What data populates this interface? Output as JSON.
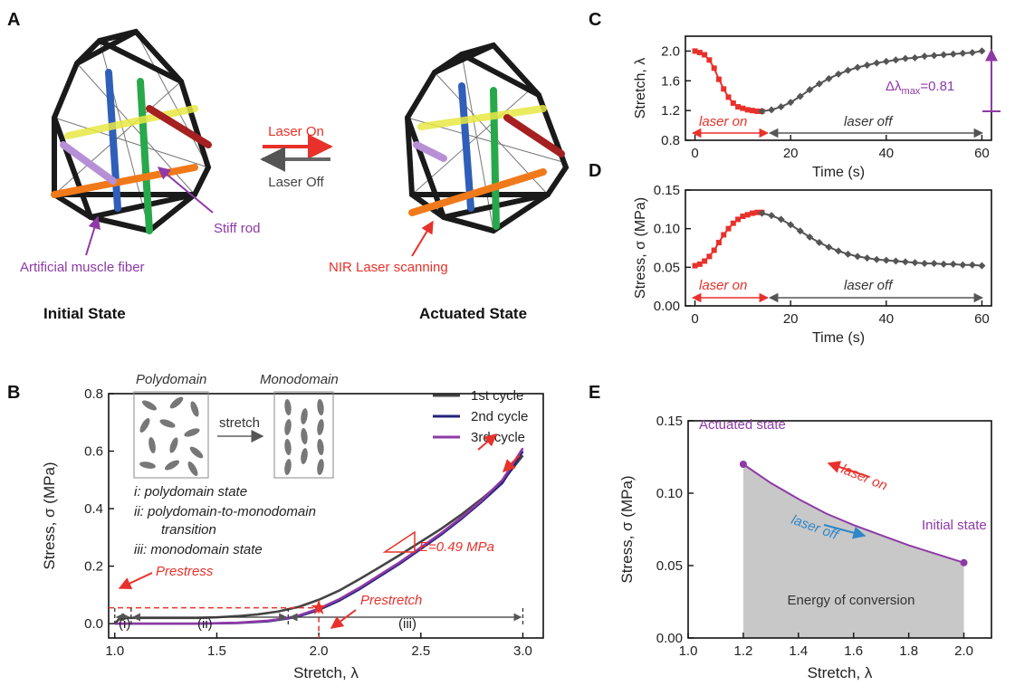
{
  "panel_labels": [
    "A",
    "B",
    "C",
    "D",
    "E"
  ],
  "panelA": {
    "laser_on": "Laser On",
    "laser_off": "Laser Off",
    "stiff_rod": "Stiff rod",
    "muscle_fiber": "Artificial muscle fiber",
    "nir_scanning": "NIR Laser scanning",
    "initial_state": "Initial State",
    "actuated_state": "Actuated State"
  },
  "panelB": {
    "polydomain": "Polydomain",
    "monodomain": "Monodomain",
    "stretch_word": "stretch",
    "regime_i": "i: polydomain state",
    "regime_ii_a": "ii: polydomain-to-monodomain",
    "regime_ii_b": "transition",
    "regime_iii": "iii: monodomain state",
    "prestress": "Prestress",
    "prestretch": "Prestretch",
    "modulus": "E=0.49 MPa",
    "seg_i": "(i)",
    "seg_ii": "(ii)",
    "seg_iii": "(iii)"
  },
  "panelC": {
    "delta_prefix": "Δλ",
    "delta_sub": "max",
    "delta_value": "=0.81",
    "laser_on": "laser on",
    "laser_off": "laser off"
  },
  "panelD": {
    "laser_on": "laser on",
    "laser_off": "laser off"
  },
  "panelE": {
    "actuated": "Actuated state",
    "initial": "Initial state",
    "laser_on": "laser on",
    "laser_off": "laser off",
    "energy": "Energy of conversion"
  },
  "colors": {
    "red": "#e8312b",
    "gray": "#555555",
    "purple": "#8e3aa6",
    "navy": "#23237a",
    "blue": "#2f86c8",
    "fill": "#c8c8c8"
  },
  "chart_data": [
    {
      "id": "B",
      "type": "line",
      "xlabel": "Stretch, λ",
      "ylabel": "Stress, σ (MPa)",
      "xlim": [
        0.97,
        3.1
      ],
      "ylim": [
        -0.05,
        0.8
      ],
      "xticks": [
        "1.0",
        "1.5",
        "2.0",
        "2.5",
        "3.0"
      ],
      "xtick_values": [
        1.0,
        1.5,
        2.0,
        2.5,
        3.0
      ],
      "yticks": [
        "0.0",
        "0.2",
        "0.4",
        "0.6",
        "0.8"
      ],
      "ytick_values": [
        0.0,
        0.2,
        0.4,
        0.6,
        0.8
      ],
      "legend_position": "top-right",
      "series": [
        {
          "name": "1st cycle",
          "color": "#444444",
          "x": [
            1.0,
            1.02,
            1.05,
            1.1,
            1.2,
            1.3,
            1.4,
            1.5,
            1.6,
            1.7,
            1.8,
            1.9,
            2.0,
            2.1,
            2.2,
            2.3,
            2.4,
            2.5,
            2.6,
            2.7,
            2.8,
            2.9,
            3.0
          ],
          "y": [
            0.0,
            0.015,
            0.02,
            0.02,
            0.02,
            0.02,
            0.02,
            0.022,
            0.026,
            0.032,
            0.042,
            0.058,
            0.083,
            0.115,
            0.155,
            0.197,
            0.24,
            0.285,
            0.33,
            0.38,
            0.435,
            0.495,
            0.585
          ]
        },
        {
          "name": "2nd cycle",
          "color": "#23237a",
          "x": [
            1.0,
            1.2,
            1.4,
            1.6,
            1.75,
            1.85,
            1.9,
            2.0,
            2.1,
            2.2,
            2.3,
            2.4,
            2.5,
            2.6,
            2.7,
            2.8,
            2.9,
            3.0
          ],
          "y": [
            0.0,
            0.0,
            0.0,
            0.002,
            0.008,
            0.018,
            0.025,
            0.048,
            0.08,
            0.12,
            0.165,
            0.21,
            0.26,
            0.31,
            0.365,
            0.425,
            0.49,
            0.6
          ]
        },
        {
          "name": "3rd cycle",
          "color": "#8e3aa6",
          "x": [
            1.0,
            1.2,
            1.4,
            1.6,
            1.75,
            1.85,
            1.9,
            2.0,
            2.1,
            2.2,
            2.3,
            2.4,
            2.5,
            2.6,
            2.7,
            2.8,
            2.9,
            3.0
          ],
          "y": [
            0.0,
            0.0,
            0.0,
            0.003,
            0.01,
            0.02,
            0.028,
            0.052,
            0.085,
            0.125,
            0.17,
            0.215,
            0.265,
            0.315,
            0.37,
            0.43,
            0.5,
            0.61
          ]
        }
      ],
      "annotations": {
        "prestress_sigma": 0.055,
        "prestretch_lambda": 2.0,
        "regime_bounds": [
          1.0,
          1.08,
          1.85,
          3.0
        ]
      }
    },
    {
      "id": "C",
      "type": "line",
      "xlabel": "Time (s)",
      "ylabel": "Stretch, λ",
      "xlim": [
        -2,
        62
      ],
      "ylim": [
        0.8,
        2.2
      ],
      "xticks": [
        "0",
        "20",
        "40",
        "60"
      ],
      "xtick_values": [
        0,
        20,
        40,
        60
      ],
      "yticks": [
        "0.8",
        "1.2",
        "1.6",
        "2.0"
      ],
      "ytick_values": [
        0.8,
        1.2,
        1.6,
        2.0
      ],
      "series": [
        {
          "name": "laser on",
          "color": "#e8312b",
          "marker": "square",
          "x": [
            0,
            1,
            2,
            3,
            4,
            5,
            6,
            7,
            8,
            9,
            10,
            11,
            12,
            13,
            14
          ],
          "y": [
            2.0,
            1.98,
            1.95,
            1.88,
            1.77,
            1.62,
            1.49,
            1.38,
            1.3,
            1.25,
            1.23,
            1.21,
            1.2,
            1.19,
            1.19
          ]
        },
        {
          "name": "laser off",
          "color": "#555555",
          "marker": "diamond",
          "x": [
            14,
            16,
            18,
            20,
            22,
            24,
            26,
            28,
            30,
            32,
            34,
            36,
            38,
            40,
            42,
            44,
            46,
            48,
            50,
            52,
            54,
            56,
            58,
            60
          ],
          "y": [
            1.19,
            1.21,
            1.25,
            1.31,
            1.39,
            1.48,
            1.56,
            1.63,
            1.69,
            1.74,
            1.78,
            1.81,
            1.84,
            1.86,
            1.88,
            1.9,
            1.91,
            1.93,
            1.94,
            1.95,
            1.96,
            1.97,
            1.98,
            2.0
          ]
        }
      ]
    },
    {
      "id": "D",
      "type": "line",
      "xlabel": "Time (s)",
      "ylabel": "Stress, σ (MPa)",
      "xlim": [
        -2,
        62
      ],
      "ylim": [
        0.0,
        0.15
      ],
      "xticks": [
        "0",
        "20",
        "40",
        "60"
      ],
      "xtick_values": [
        0,
        20,
        40,
        60
      ],
      "yticks": [
        "0.00",
        "0.05",
        "0.10",
        "0.15"
      ],
      "ytick_values": [
        0.0,
        0.05,
        0.1,
        0.15
      ],
      "series": [
        {
          "name": "laser on",
          "color": "#e8312b",
          "marker": "square",
          "x": [
            0,
            1,
            2,
            3,
            4,
            5,
            6,
            7,
            8,
            9,
            10,
            11,
            12,
            13,
            14
          ],
          "y": [
            0.052,
            0.054,
            0.058,
            0.064,
            0.072,
            0.082,
            0.092,
            0.1,
            0.107,
            0.112,
            0.116,
            0.118,
            0.12,
            0.121,
            0.121
          ]
        },
        {
          "name": "laser off",
          "color": "#555555",
          "marker": "diamond",
          "x": [
            14,
            16,
            18,
            20,
            22,
            24,
            26,
            28,
            30,
            32,
            34,
            36,
            38,
            40,
            42,
            44,
            46,
            48,
            50,
            52,
            54,
            56,
            58,
            60
          ],
          "y": [
            0.12,
            0.117,
            0.112,
            0.105,
            0.097,
            0.089,
            0.082,
            0.076,
            0.071,
            0.067,
            0.064,
            0.062,
            0.06,
            0.059,
            0.058,
            0.057,
            0.056,
            0.055,
            0.055,
            0.054,
            0.054,
            0.053,
            0.053,
            0.052
          ]
        }
      ]
    },
    {
      "id": "E",
      "type": "area",
      "xlabel": "Stretch, λ",
      "ylabel": "Stress, σ (MPa)",
      "xlim": [
        1.0,
        2.1
      ],
      "ylim": [
        0.0,
        0.15
      ],
      "xticks": [
        "1.0",
        "1.2",
        "1.4",
        "1.6",
        "1.8",
        "2.0"
      ],
      "xtick_values": [
        1.0,
        1.2,
        1.4,
        1.6,
        1.8,
        2.0
      ],
      "yticks": [
        "0.00",
        "0.05",
        "0.10",
        "0.15"
      ],
      "ytick_values": [
        0.0,
        0.05,
        0.1,
        0.15
      ],
      "series": [
        {
          "name": "",
          "color": "#8e3aa6",
          "x": [
            1.2,
            1.3,
            1.4,
            1.5,
            1.6,
            1.7,
            1.8,
            1.9,
            2.0
          ],
          "y": [
            0.12,
            0.107,
            0.096,
            0.086,
            0.078,
            0.071,
            0.064,
            0.058,
            0.052
          ]
        }
      ]
    }
  ]
}
